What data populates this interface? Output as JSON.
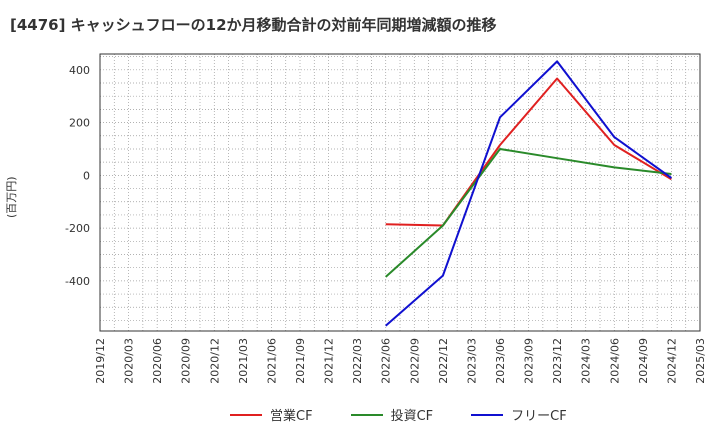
{
  "chart_data": {
    "type": "line",
    "title": "[4476]  キャッシュフローの12か月移動合計の対前年同期増減額の推移",
    "ylabel": "(百万円)",
    "xlabel": "",
    "ylim": [
      -590,
      460
    ],
    "yticks": [
      400,
      200,
      0,
      -200,
      -400
    ],
    "ytick_labels": [
      "400",
      "200",
      "0",
      "-200",
      "-400"
    ],
    "categories": [
      "2019/12",
      "2020/03",
      "2020/06",
      "2020/09",
      "2020/12",
      "2021/03",
      "2021/06",
      "2021/09",
      "2021/12",
      "2022/03",
      "2022/06",
      "2022/09",
      "2022/12",
      "2023/03",
      "2023/06",
      "2023/09",
      "2023/12",
      "2024/03",
      "2024/06",
      "2024/09",
      "2024/12",
      "2025/03"
    ],
    "grid": true,
    "legend_position": "bottom",
    "series": [
      {
        "name": "営業CF",
        "color": "#e02020",
        "values": [
          null,
          null,
          null,
          null,
          null,
          null,
          null,
          null,
          null,
          null,
          -185,
          null,
          -190,
          null,
          115,
          null,
          367,
          null,
          115,
          null,
          -15,
          null
        ]
      },
      {
        "name": "投資CF",
        "color": "#2a8a2a",
        "values": [
          null,
          null,
          null,
          null,
          null,
          null,
          null,
          null,
          null,
          null,
          -385,
          null,
          -190,
          null,
          100,
          null,
          65,
          null,
          30,
          null,
          5,
          null
        ]
      },
      {
        "name": "フリーCF",
        "color": "#1010d0",
        "values": [
          null,
          null,
          null,
          null,
          null,
          null,
          null,
          null,
          null,
          null,
          -570,
          null,
          -380,
          null,
          220,
          null,
          432,
          null,
          145,
          null,
          -10,
          null
        ]
      }
    ]
  }
}
